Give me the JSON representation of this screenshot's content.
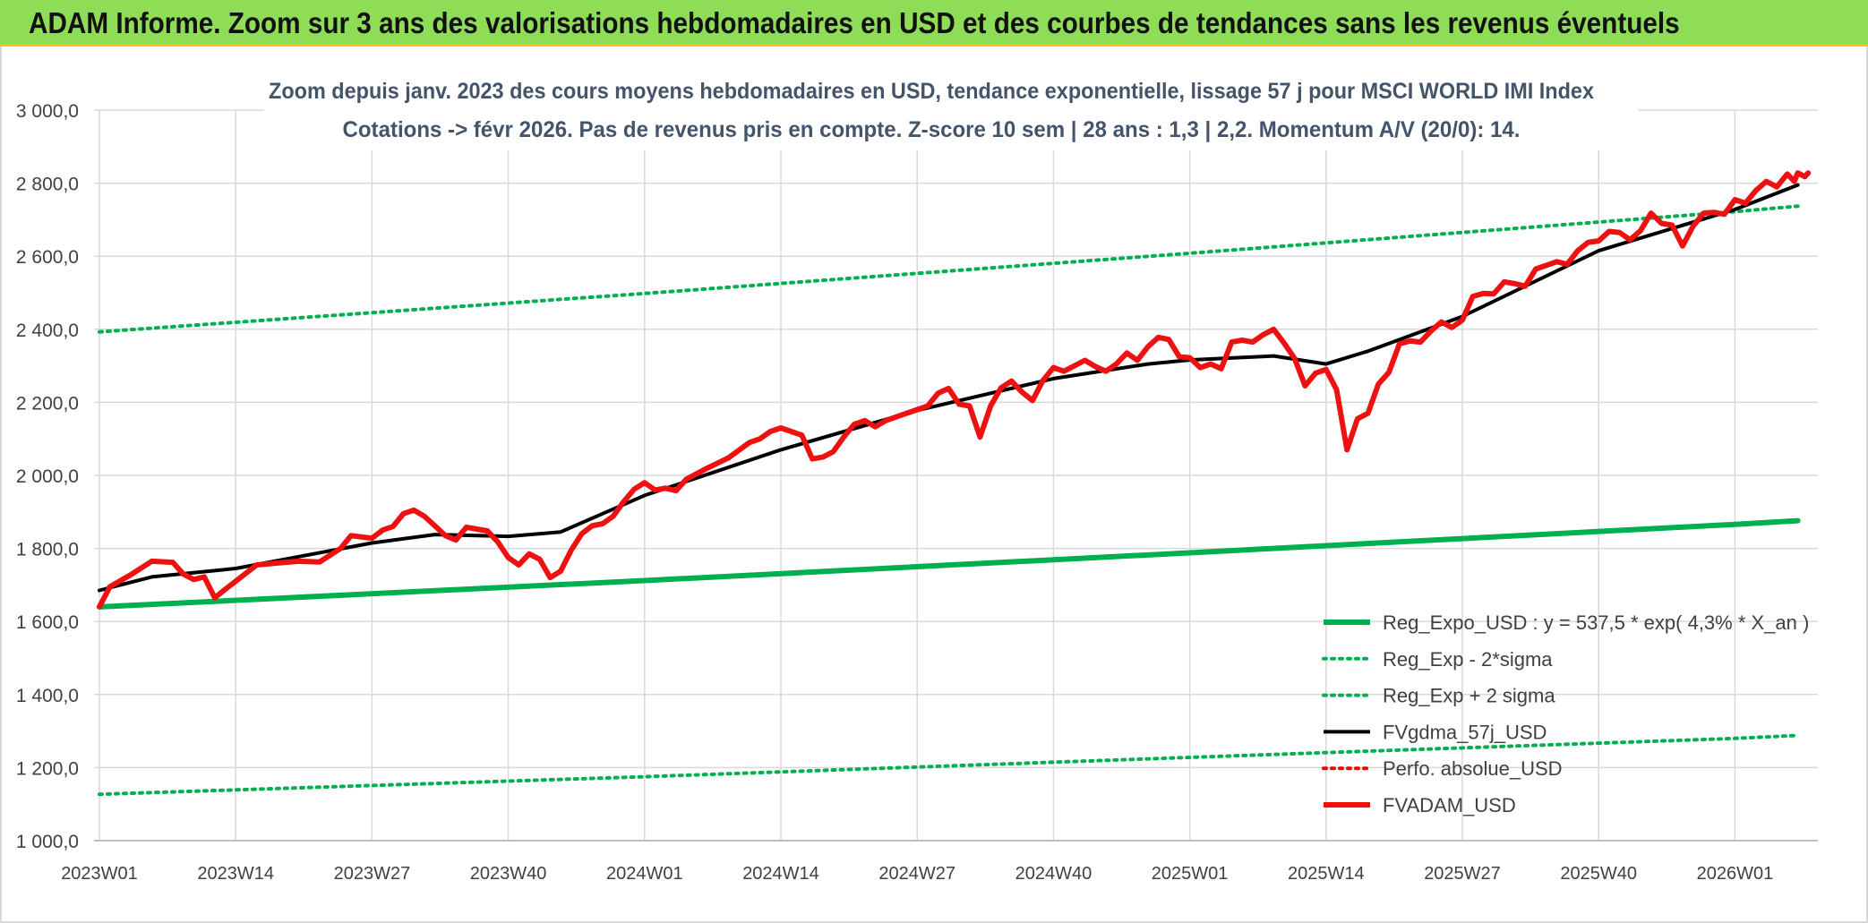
{
  "banner": {
    "title": "ADAM Informe. Zoom sur 3 ans des valorisations hebdomadaires en USD et des courbes de tendances sans les revenus éventuels"
  },
  "colors": {
    "banner_background": "#8fdc57",
    "banner_border": "#f2c21e",
    "reg_expo": "#00b050",
    "fvadam": "#ee1111",
    "fvgdma": "#000000",
    "perfo": "#ff0000",
    "grid": "#d9d9d9",
    "axis_text": "#404040",
    "title_text": "#44546a"
  },
  "chart_data": {
    "type": "line",
    "title": "Zoom depuis janv. 2023 des cours moyens hebdomadaires en USD, tendance exponentielle, lissage 57 j pour MSCI WORLD IMI Index",
    "subtitle": "Cotations -> févr 2026. Pas de revenus pris en compte. Z-score 10 sem | 28 ans : 1,3 | 2,2. Momentum A/V (20/0): 14.",
    "xlabel": "",
    "ylabel": "",
    "ylim": [
      1000,
      3000
    ],
    "yticks": [
      "1 000,0",
      "1 200,0",
      "1 400,0",
      "1 600,0",
      "1 800,0",
      "2 000,0",
      "2 200,0",
      "2 400,0",
      "2 600,0",
      "2 800,0",
      "3 000,0"
    ],
    "xticks": [
      "2023W01",
      "2023W14",
      "2023W27",
      "2023W40",
      "2024W01",
      "2024W14",
      "2024W27",
      "2024W40",
      "2025W01",
      "2025W14",
      "2025W27",
      "2025W40",
      "2026W01"
    ],
    "x_first": "2023W01",
    "x_last": "2026W07",
    "grid": true,
    "legend_position": "bottom-right",
    "series": [
      {
        "name": "Reg_Expo_USD : y = 537,5 * exp( 4,3% *  X_an )",
        "style": "solid-thick",
        "color": "#00b050",
        "points": [
          [
            "2023W01",
            1640
          ],
          [
            "2024W01",
            1712
          ],
          [
            "2025W01",
            1788
          ],
          [
            "2026W01",
            1866
          ],
          [
            "2026W07",
            1876
          ]
        ]
      },
      {
        "name": "Reg_Exp - 2*sigma",
        "style": "dotted",
        "color": "#00b050",
        "points": [
          [
            "2023W01",
            1127
          ],
          [
            "2024W01",
            1175
          ],
          [
            "2025W01",
            1228
          ],
          [
            "2026W01",
            1280
          ],
          [
            "2026W07",
            1288
          ]
        ]
      },
      {
        "name": "Reg_Exp + 2 sigma",
        "style": "dotted",
        "color": "#00b050",
        "points": [
          [
            "2023W01",
            2393
          ],
          [
            "2024W01",
            2498
          ],
          [
            "2025W01",
            2608
          ],
          [
            "2026W01",
            2722
          ],
          [
            "2026W07",
            2737
          ]
        ]
      },
      {
        "name": "FVgdma_57j_USD",
        "style": "solid",
        "color": "#000000",
        "points": [
          [
            "2023W01",
            1685
          ],
          [
            "2023W06",
            1722
          ],
          [
            "2023W14",
            1745
          ],
          [
            "2023W27",
            1815
          ],
          [
            "2023W33",
            1838
          ],
          [
            "2023W40",
            1833
          ],
          [
            "2023W45",
            1845
          ],
          [
            "2024W01",
            1945
          ],
          [
            "2024W14",
            2070
          ],
          [
            "2024W27",
            2178
          ],
          [
            "2024W40",
            2265
          ],
          [
            "2024W49",
            2305
          ],
          [
            "2025W01",
            2316
          ],
          [
            "2025W09",
            2327
          ],
          [
            "2025W14",
            2305
          ],
          [
            "2025W18",
            2340
          ],
          [
            "2025W27",
            2435
          ],
          [
            "2025W40",
            2615
          ],
          [
            "2026W01",
            2728
          ],
          [
            "2026W07",
            2795
          ]
        ]
      },
      {
        "name": "Perfo. absolue_USD",
        "style": "dotted",
        "color": "#ff0000",
        "points": []
      },
      {
        "name": "FVADAM_USD",
        "style": "solid-thick",
        "color": "#ee1111",
        "points": [
          [
            "2023W01",
            1640
          ],
          [
            "2023W02",
            1695
          ],
          [
            "2023W04",
            1728
          ],
          [
            "2023W06",
            1765
          ],
          [
            "2023W08",
            1762
          ],
          [
            "2023W09",
            1730
          ],
          [
            "2023W10",
            1715
          ],
          [
            "2023W11",
            1722
          ],
          [
            "2023W12",
            1665
          ],
          [
            "2023W13",
            1688
          ],
          [
            "2023W14",
            1710
          ],
          [
            "2023W16",
            1755
          ],
          [
            "2023W18",
            1760
          ],
          [
            "2023W20",
            1765
          ],
          [
            "2023W22",
            1763
          ],
          [
            "2023W24",
            1800
          ],
          [
            "2023W25",
            1835
          ],
          [
            "2023W27",
            1828
          ],
          [
            "2023W28",
            1850
          ],
          [
            "2023W29",
            1860
          ],
          [
            "2023W30",
            1895
          ],
          [
            "2023W31",
            1905
          ],
          [
            "2023W32",
            1888
          ],
          [
            "2023W33",
            1862
          ],
          [
            "2023W34",
            1835
          ],
          [
            "2023W35",
            1823
          ],
          [
            "2023W36",
            1858
          ],
          [
            "2023W38",
            1848
          ],
          [
            "2023W39",
            1818
          ],
          [
            "2023W40",
            1775
          ],
          [
            "2023W41",
            1755
          ],
          [
            "2023W42",
            1785
          ],
          [
            "2023W43",
            1770
          ],
          [
            "2023W44",
            1720
          ],
          [
            "2023W45",
            1738
          ],
          [
            "2023W46",
            1795
          ],
          [
            "2023W47",
            1840
          ],
          [
            "2023W48",
            1862
          ],
          [
            "2023W49",
            1868
          ],
          [
            "2023W50",
            1888
          ],
          [
            "2023W51",
            1928
          ],
          [
            "2023W52",
            1962
          ],
          [
            "2024W01",
            1980
          ],
          [
            "2024W02",
            1960
          ],
          [
            "2024W03",
            1965
          ],
          [
            "2024W04",
            1958
          ],
          [
            "2024W05",
            1990
          ],
          [
            "2024W07",
            2020
          ],
          [
            "2024W09",
            2048
          ],
          [
            "2024W11",
            2090
          ],
          [
            "2024W12",
            2100
          ],
          [
            "2024W13",
            2120
          ],
          [
            "2024W14",
            2130
          ],
          [
            "2024W16",
            2110
          ],
          [
            "2024W17",
            2045
          ],
          [
            "2024W18",
            2050
          ],
          [
            "2024W19",
            2065
          ],
          [
            "2024W20",
            2105
          ],
          [
            "2024W21",
            2140
          ],
          [
            "2024W22",
            2150
          ],
          [
            "2024W23",
            2133
          ],
          [
            "2024W24",
            2150
          ],
          [
            "2024W26",
            2170
          ],
          [
            "2024W28",
            2190
          ],
          [
            "2024W29",
            2225
          ],
          [
            "2024W30",
            2238
          ],
          [
            "2024W31",
            2195
          ],
          [
            "2024W32",
            2190
          ],
          [
            "2024W33",
            2105
          ],
          [
            "2024W34",
            2190
          ],
          [
            "2024W35",
            2240
          ],
          [
            "2024W36",
            2258
          ],
          [
            "2024W37",
            2228
          ],
          [
            "2024W38",
            2205
          ],
          [
            "2024W39",
            2260
          ],
          [
            "2024W40",
            2295
          ],
          [
            "2024W41",
            2285
          ],
          [
            "2024W42",
            2300
          ],
          [
            "2024W43",
            2315
          ],
          [
            "2024W44",
            2298
          ],
          [
            "2024W45",
            2285
          ],
          [
            "2024W46",
            2305
          ],
          [
            "2024W47",
            2335
          ],
          [
            "2024W48",
            2315
          ],
          [
            "2024W49",
            2352
          ],
          [
            "2024W50",
            2378
          ],
          [
            "2024W51",
            2372
          ],
          [
            "2024W52",
            2325
          ],
          [
            "2025W01",
            2322
          ],
          [
            "2025W02",
            2295
          ],
          [
            "2025W03",
            2305
          ],
          [
            "2025W04",
            2292
          ],
          [
            "2025W05",
            2365
          ],
          [
            "2025W06",
            2370
          ],
          [
            "2025W07",
            2365
          ],
          [
            "2025W08",
            2385
          ],
          [
            "2025W09",
            2400
          ],
          [
            "2025W10",
            2362
          ],
          [
            "2025W11",
            2320
          ],
          [
            "2025W12",
            2245
          ],
          [
            "2025W13",
            2280
          ],
          [
            "2025W14",
            2290
          ],
          [
            "2025W15",
            2235
          ],
          [
            "2025W16",
            2070
          ],
          [
            "2025W17",
            2155
          ],
          [
            "2025W18",
            2170
          ],
          [
            "2025W19",
            2250
          ],
          [
            "2025W20",
            2282
          ],
          [
            "2025W21",
            2360
          ],
          [
            "2025W22",
            2368
          ],
          [
            "2025W23",
            2365
          ],
          [
            "2025W24",
            2395
          ],
          [
            "2025W25",
            2420
          ],
          [
            "2025W26",
            2405
          ],
          [
            "2025W27",
            2425
          ],
          [
            "2025W28",
            2490
          ],
          [
            "2025W29",
            2498
          ],
          [
            "2025W30",
            2497
          ],
          [
            "2025W31",
            2530
          ],
          [
            "2025W32",
            2525
          ],
          [
            "2025W33",
            2518
          ],
          [
            "2025W34",
            2565
          ],
          [
            "2025W35",
            2575
          ],
          [
            "2025W36",
            2585
          ],
          [
            "2025W37",
            2578
          ],
          [
            "2025W38",
            2615
          ],
          [
            "2025W39",
            2638
          ],
          [
            "2025W40",
            2642
          ],
          [
            "2025W41",
            2668
          ],
          [
            "2025W42",
            2665
          ],
          [
            "2025W43",
            2645
          ],
          [
            "2025W44",
            2670
          ],
          [
            "2025W45",
            2718
          ],
          [
            "2025W46",
            2690
          ],
          [
            "2025W47",
            2685
          ],
          [
            "2025W48",
            2628
          ],
          [
            "2025W49",
            2682
          ],
          [
            "2025W50",
            2718
          ],
          [
            "2025W51",
            2720
          ],
          [
            "2025W52",
            2715
          ],
          [
            "2026W01",
            2755
          ],
          [
            "2026W02",
            2745
          ],
          [
            "2026W03",
            2780
          ],
          [
            "2026W04",
            2805
          ],
          [
            "2026W05",
            2790
          ],
          [
            "2026W06",
            2825
          ],
          [
            "2026W06b",
            2805
          ],
          [
            "2026W07",
            2828
          ],
          [
            "2026W07b",
            2818
          ],
          [
            "2026W07c",
            2828
          ]
        ]
      }
    ]
  }
}
